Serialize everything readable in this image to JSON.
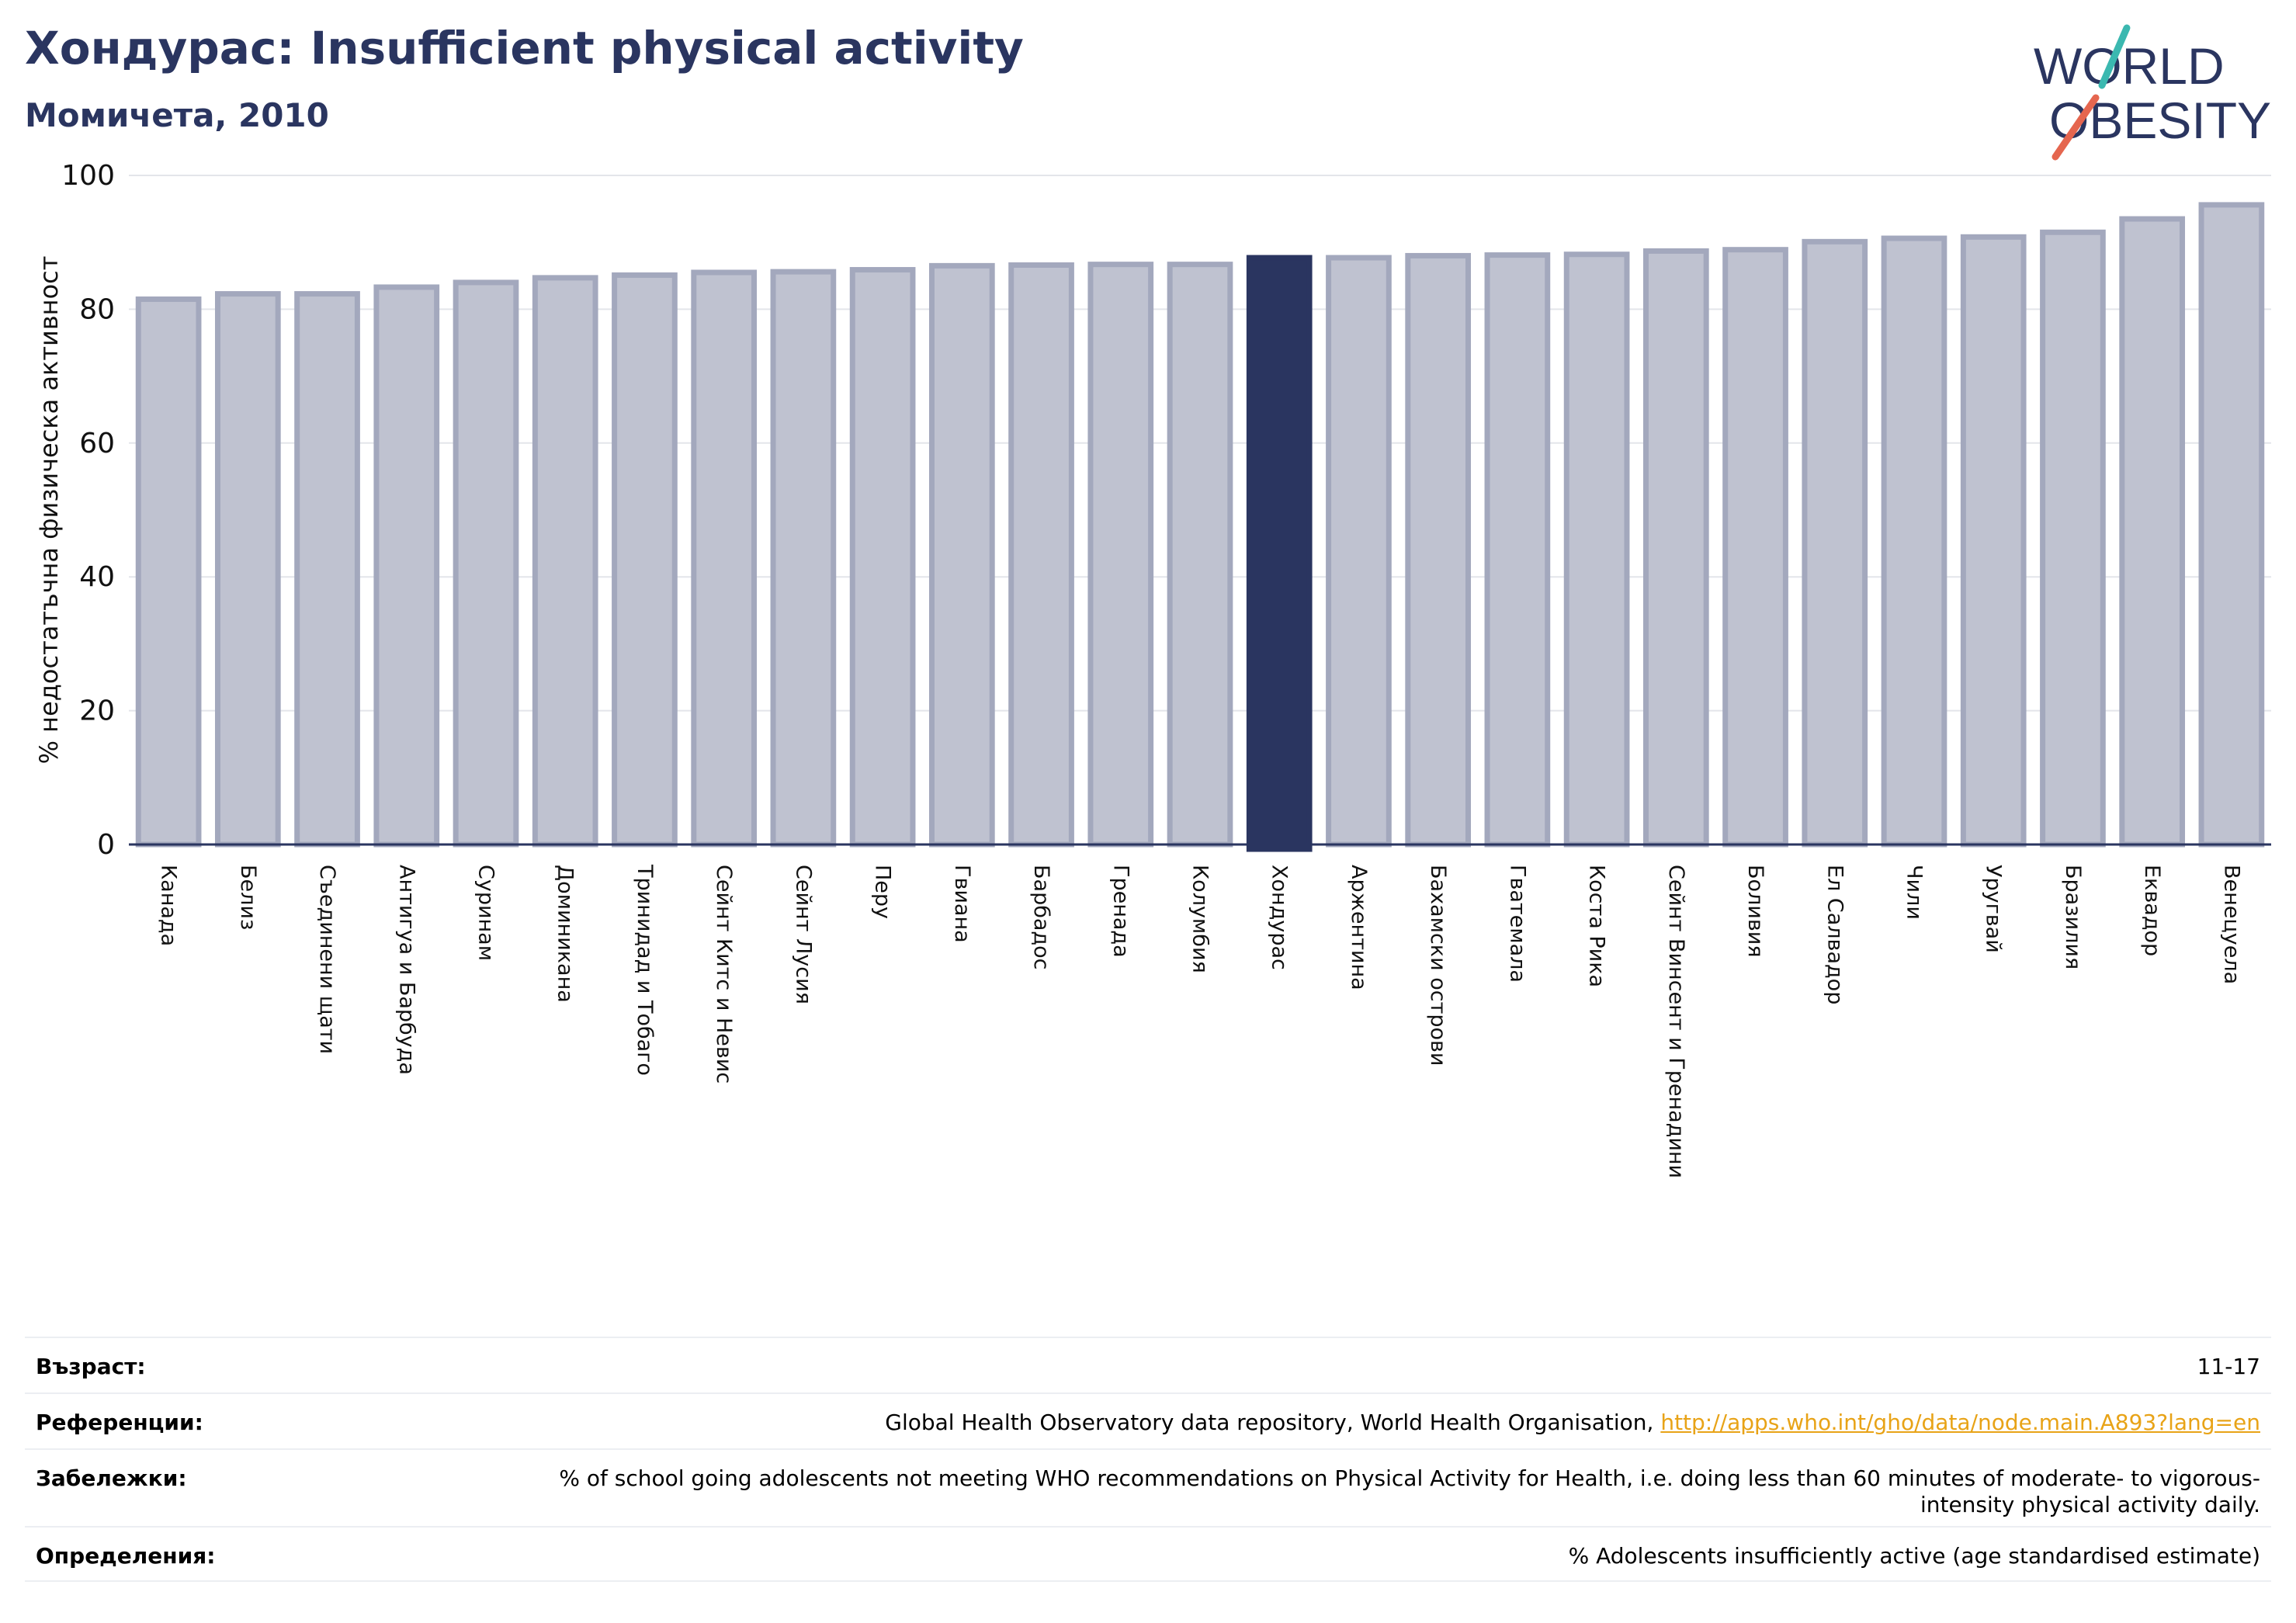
{
  "header": {
    "title": "Хондурас: Insufficient physical activity",
    "subtitle": "Момичета, 2010"
  },
  "logo": {
    "line1": "WORLD",
    "line2": "OBESITY"
  },
  "colors": {
    "bar": "#bfc2d0",
    "bar_edge": "#a3a8bd",
    "highlight": "#2a3560",
    "title": "#2a3560",
    "link": "#e8a317"
  },
  "chart_data": {
    "type": "bar",
    "ylabel": "% недостатъчна физическа активност",
    "ylim": [
      0,
      100
    ],
    "yticks": [
      0,
      20,
      40,
      60,
      80,
      100
    ],
    "grid": true,
    "highlight": "Хондурас",
    "categories": [
      "Канада",
      "Белиз",
      "Съединени щати",
      "Антигуа и Барбуда",
      "Суринам",
      "Доминикана",
      "Тринидад и Тобаго",
      "Сейнт Китс и Невис",
      "Сейнт Лусия",
      "Перу",
      "Гвиана",
      "Барбадос",
      "Гренада",
      "Колумбия",
      "Хондурас",
      "Аржентина",
      "Бахамски острови",
      "Гватемала",
      "Коста Рика",
      "Сейнт Винсент и Гренадини",
      "Боливия",
      "Ел Салвадор",
      "Чили",
      "Уругвай",
      "Бразилия",
      "Еквадор",
      "Венецуела"
    ],
    "values": [
      81.5,
      82.3,
      82.3,
      83.3,
      84.0,
      84.7,
      85.1,
      85.5,
      85.6,
      85.9,
      86.5,
      86.6,
      86.7,
      86.7,
      87.7,
      87.7,
      88.0,
      88.1,
      88.2,
      88.7,
      88.9,
      90.1,
      90.6,
      90.8,
      91.5,
      93.5,
      95.6
    ]
  },
  "footer": {
    "rows": [
      {
        "label": "Възраст:",
        "value": "11-17"
      },
      {
        "label": "Референции:",
        "value": "Global Health Observatory data repository, World Health Organisation, ",
        "link": "http://apps.who.int/gho/data/node.main.A893?lang=en"
      },
      {
        "label": "Забележки:",
        "value": "% of school going adolescents not meeting WHO recommendations on Physical Activity for Health, i.e. doing less than 60 minutes of moderate- to vigorous-intensity physical activity daily."
      },
      {
        "label": "Определения:",
        "value": "% Adolescents insufficiently active (age standardised estimate)"
      }
    ]
  }
}
